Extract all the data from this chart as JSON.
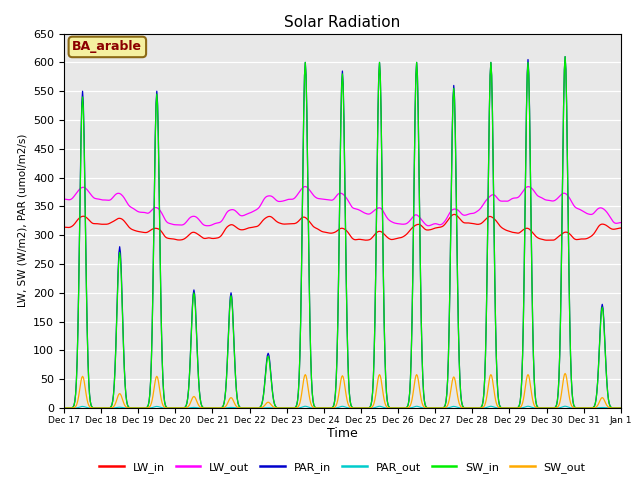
{
  "title": "Solar Radiation",
  "ylabel": "LW, SW (W/m2), PAR (umol/m2/s)",
  "xlabel": "Time",
  "ylim": [
    0,
    650
  ],
  "yticks": [
    0,
    50,
    100,
    150,
    200,
    250,
    300,
    350,
    400,
    450,
    500,
    550,
    600,
    650
  ],
  "bg_color": "#e8e8e8",
  "legend_labels": [
    "LW_in",
    "LW_out",
    "PAR_in",
    "PAR_out",
    "SW_in",
    "SW_out"
  ],
  "legend_colors": [
    "#ff0000",
    "#ff00ff",
    "#0000cc",
    "#00cccc",
    "#00ee00",
    "#ffaa00"
  ],
  "annotation_text": "BA_arable",
  "annotation_color": "#8B0000",
  "annotation_bg": "#f5f0a0",
  "n_days": 15,
  "start_day": 17,
  "peak_par": [
    550,
    280,
    550,
    205,
    200,
    95,
    600,
    585,
    600,
    600,
    560,
    600,
    605,
    610,
    180
  ],
  "peak_sw": [
    540,
    270,
    545,
    200,
    195,
    90,
    600,
    580,
    600,
    600,
    555,
    600,
    600,
    610,
    175
  ],
  "peak_swout": [
    55,
    25,
    55,
    20,
    18,
    10,
    58,
    56,
    58,
    58,
    54,
    58,
    58,
    60,
    18
  ],
  "lw_in_base": 310,
  "lw_out_base": 345
}
